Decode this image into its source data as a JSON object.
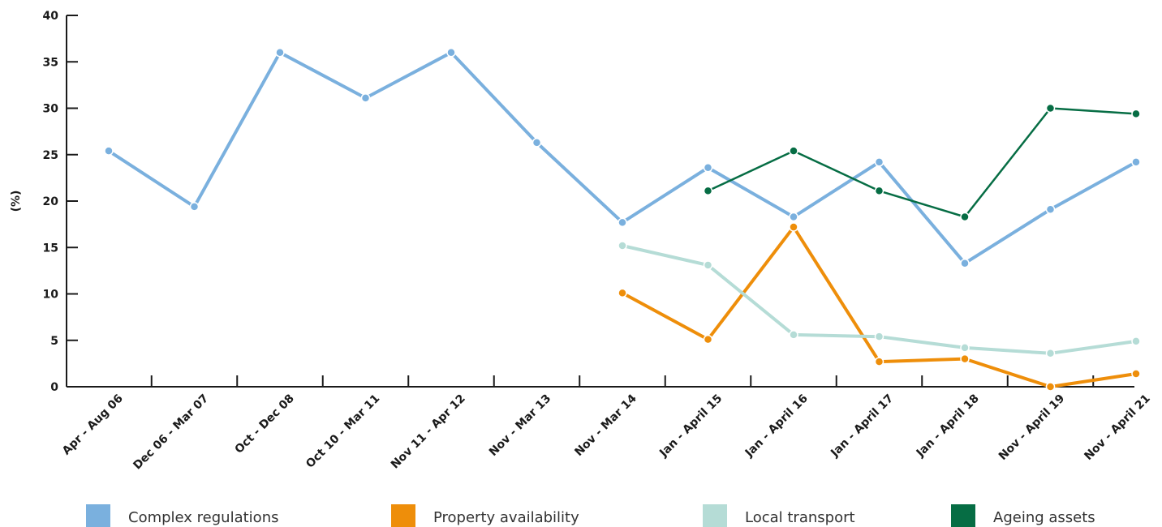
{
  "chart_data": {
    "type": "line",
    "ylabel": "(%)",
    "ylim": [
      0,
      40
    ],
    "yticks": [
      0,
      5,
      10,
      15,
      20,
      25,
      30,
      35,
      40
    ],
    "grid": false,
    "legend_position": "bottom",
    "categories": [
      "Apr - Aug 06",
      "Dec 06 - Mar 07",
      "Oct - Dec 08",
      "Oct 10 - Mar 11",
      "Nov 11 - Apr 12",
      "Nov - Mar 13",
      "Nov - Mar 14",
      "Jan - April 15",
      "Jan - April 16",
      "Jan - April 17",
      "Jan - April 18",
      "Nov - April 19",
      "Nov - April 21"
    ],
    "series": [
      {
        "name": "Complex regulations",
        "color": "#7ab0de",
        "values": [
          25.4,
          19.4,
          36.0,
          31.1,
          36.0,
          26.3,
          17.7,
          23.6,
          18.3,
          24.2,
          13.3,
          19.1,
          24.2
        ]
      },
      {
        "name": "Property availability",
        "color": "#ee8e0a",
        "values": [
          null,
          null,
          null,
          null,
          null,
          null,
          10.1,
          5.1,
          17.2,
          2.7,
          3.0,
          0.0,
          1.4
        ]
      },
      {
        "name": "Local transport",
        "color": "#b5dcd6",
        "values": [
          null,
          null,
          null,
          null,
          null,
          null,
          15.2,
          13.1,
          5.6,
          5.4,
          4.2,
          3.6,
          4.9
        ]
      },
      {
        "name": "Ageing assets",
        "color": "#066d44",
        "values": [
          null,
          null,
          null,
          null,
          null,
          null,
          null,
          21.1,
          25.4,
          21.1,
          18.3,
          30.0,
          29.4
        ]
      }
    ]
  }
}
